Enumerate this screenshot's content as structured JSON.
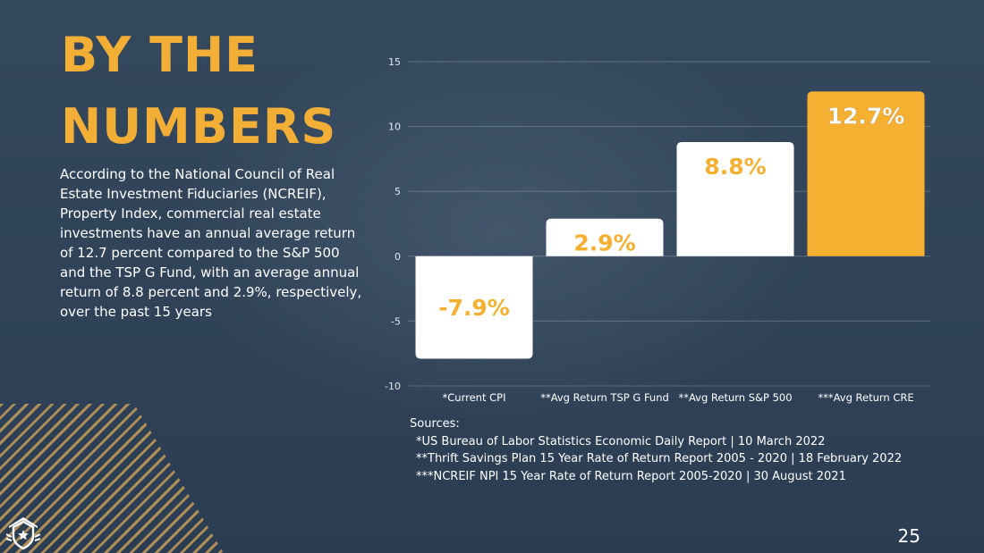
{
  "slide": {
    "title": "BY THE NUMBERS",
    "body": "According to the National Council of Real Estate Investment Fiduciaries (NCREIF), Property Index, commercial real estate investments have an annual average return of 12.7 percent compared to the S&P 500 and the TSP G Fund, with an average annual return of 8.8 percent and 2.9%, respectively, over the past 15 years",
    "page_number": "25",
    "colors": {
      "accent": "#f2ae35",
      "background": "#2f4257",
      "bar_default": "#ffffff",
      "bar_highlight": "#f5b031"
    },
    "logo_icon": "shield-house-logo-icon"
  },
  "chart_data": {
    "type": "bar",
    "categories": [
      "*Current CPI",
      "**Avg Return TSP G Fund",
      "**Avg Return S&P 500",
      "***Avg Return CRE"
    ],
    "values": [
      -7.9,
      2.9,
      8.8,
      12.7
    ],
    "data_labels": [
      "-7.9%",
      "2.9%",
      "8.8%",
      "12.7%"
    ],
    "highlight_index": 3,
    "title": "",
    "xlabel": "",
    "ylabel": "",
    "ylim": [
      -10,
      15
    ],
    "yticks": [
      15,
      10,
      5,
      0,
      -5,
      -10
    ],
    "grid": true,
    "legend": "none"
  },
  "sources": {
    "heading": "Sources:",
    "items": [
      "*US Bureau of Labor Statistics Economic Daily Report | 10 March 2022",
      "**Thrift Savings Plan 15 Year Rate of Return Report 2005 - 2020 | 18 February 2022",
      "***NCREIF NPI 15 Year Rate of Return Report 2005-2020 | 30 August 2021"
    ]
  }
}
